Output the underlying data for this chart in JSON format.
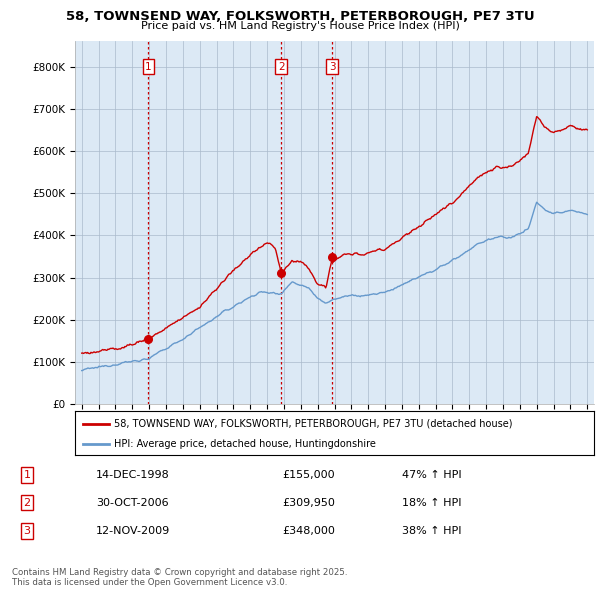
{
  "title": "58, TOWNSEND WAY, FOLKSWORTH, PETERBOROUGH, PE7 3TU",
  "subtitle": "Price paid vs. HM Land Registry's House Price Index (HPI)",
  "red_label": "58, TOWNSEND WAY, FOLKSWORTH, PETERBOROUGH, PE7 3TU (detached house)",
  "blue_label": "HPI: Average price, detached house, Huntingdonshire",
  "transactions": [
    {
      "num": 1,
      "date": "14-DEC-1998",
      "price": "£155,000",
      "pct": "47% ↑ HPI",
      "year": 1998.96
    },
    {
      "num": 2,
      "date": "30-OCT-2006",
      "price": "£309,950",
      "pct": "18% ↑ HPI",
      "year": 2006.83
    },
    {
      "num": 3,
      "date": "12-NOV-2009",
      "price": "£348,000",
      "pct": "38% ↑ HPI",
      "year": 2009.87
    }
  ],
  "transaction_values": [
    155000,
    309950,
    348000
  ],
  "footer": "Contains HM Land Registry data © Crown copyright and database right 2025.\nThis data is licensed under the Open Government Licence v3.0.",
  "ylim": [
    0,
    860000
  ],
  "yticks": [
    0,
    100000,
    200000,
    300000,
    400000,
    500000,
    600000,
    700000,
    800000
  ],
  "ytick_labels": [
    "£0",
    "£100K",
    "£200K",
    "£300K",
    "£400K",
    "£500K",
    "£600K",
    "£700K",
    "£800K"
  ],
  "red_color": "#cc0000",
  "blue_color": "#6699cc",
  "chart_bg": "#dce9f5",
  "background_color": "#ffffff",
  "grid_color": "#aabbcc",
  "vline_color": "#cc0000"
}
